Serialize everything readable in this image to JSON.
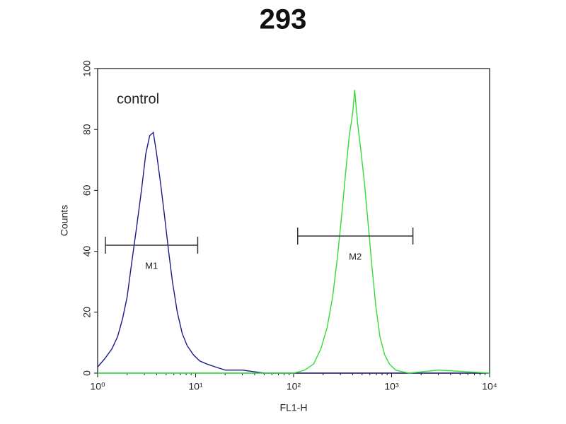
{
  "chart_data": {
    "type": "line",
    "title": "293",
    "x_label": "FL1-H",
    "y_label": "Counts",
    "annotation": "control",
    "log_x": true,
    "xlim": [
      1,
      10000
    ],
    "ylim": [
      0,
      100
    ],
    "xticks": [
      {
        "value": 1,
        "label": "10⁰"
      },
      {
        "value": 10,
        "label": "10¹"
      },
      {
        "value": 100,
        "label": "10²"
      },
      {
        "value": 1000,
        "label": "10³"
      },
      {
        "value": 10000,
        "label": "10⁴"
      }
    ],
    "yticks": [
      0,
      20,
      40,
      60,
      80,
      100
    ],
    "series": [
      {
        "color": "#1a1a8c",
        "x": [
          1,
          1.2,
          1.4,
          1.6,
          1.8,
          2,
          2.2,
          2.5,
          2.8,
          3.1,
          3.4,
          3.7,
          4,
          4.4,
          4.8,
          5.3,
          5.8,
          6.5,
          7.3,
          8.2,
          9.5,
          11,
          13,
          16,
          20,
          30,
          50,
          100,
          1000,
          10000
        ],
        "values": [
          2,
          5,
          8,
          12,
          18,
          25,
          35,
          48,
          60,
          72,
          78,
          79,
          72,
          62,
          52,
          40,
          30,
          20,
          13,
          9,
          6,
          4,
          3,
          2,
          1,
          1,
          0,
          0,
          0,
          0
        ]
      },
      {
        "color": "#33dd33",
        "x": [
          1,
          50,
          100,
          130,
          160,
          190,
          220,
          250,
          280,
          310,
          340,
          370,
          400,
          420,
          450,
          490,
          530,
          580,
          630,
          690,
          760,
          850,
          950,
          1100,
          1500,
          3000,
          10000
        ],
        "values": [
          0,
          0,
          0,
          1,
          3,
          8,
          15,
          25,
          38,
          52,
          66,
          78,
          85,
          93,
          82,
          72,
          62,
          48,
          35,
          22,
          12,
          6,
          3,
          1,
          0,
          1,
          0
        ]
      }
    ],
    "markers": [
      {
        "label": "M1",
        "x": [
          1.2,
          10.5
        ],
        "y": 42
      },
      {
        "label": "M2",
        "x": [
          110,
          1650
        ],
        "y": 45
      }
    ]
  }
}
